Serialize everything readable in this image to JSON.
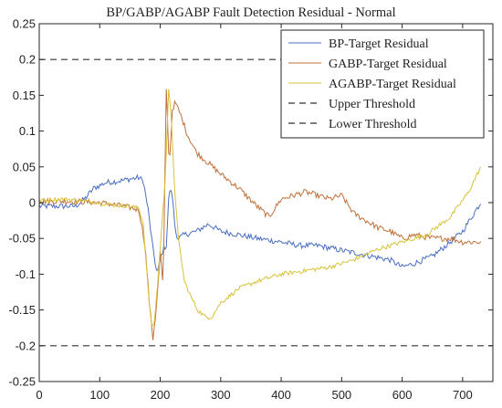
{
  "chart_data": {
    "type": "line",
    "title": "BP/GABP/AGABP Fault Detection Residual - Normal",
    "xlabel": "",
    "ylabel": "",
    "xlim": [
      0,
      750
    ],
    "ylim": [
      -0.25,
      0.25
    ],
    "grid": false,
    "legend_position": "top-right",
    "x_ticks": [
      0,
      100,
      200,
      300,
      400,
      500,
      600,
      700
    ],
    "x_tick_labels": [
      "0",
      "100",
      "200",
      "300",
      "400",
      "500",
      "600",
      "700"
    ],
    "y_ticks": [
      -0.25,
      -0.2,
      -0.15,
      -0.1,
      -0.05,
      0,
      0.05,
      0.1,
      0.15,
      0.2,
      0.25
    ],
    "y_tick_labels": [
      "-0.25",
      "-0.2",
      "-0.15",
      "-0.1",
      "-0.05",
      "0",
      "0.05",
      "0.1",
      "0.15",
      "0.2",
      "0.25"
    ],
    "series": [
      {
        "name": "BP-Target Residual",
        "color": "#4a6fc2",
        "style": "solid",
        "x": [
          0,
          40,
          60,
          75,
          90,
          110,
          130,
          150,
          165,
          172,
          180,
          188,
          195,
          200,
          205,
          210,
          215,
          220,
          225,
          230,
          240,
          260,
          280,
          300,
          330,
          360,
          400,
          430,
          460,
          490,
          520,
          550,
          580,
          600,
          620,
          650,
          680,
          700,
          730
        ],
        "y": [
          -0.005,
          -0.005,
          -0.005,
          0.005,
          0.02,
          0.028,
          0.03,
          0.033,
          0.035,
          0.03,
          -0.01,
          -0.065,
          -0.1,
          -0.08,
          -0.065,
          -0.06,
          0.02,
          0.01,
          -0.04,
          -0.05,
          -0.045,
          -0.04,
          -0.03,
          -0.04,
          -0.045,
          -0.05,
          -0.055,
          -0.06,
          -0.06,
          -0.065,
          -0.07,
          -0.075,
          -0.08,
          -0.09,
          -0.085,
          -0.075,
          -0.055,
          -0.04,
          0.0
        ]
      },
      {
        "name": "GABP-Target Residual",
        "color": "#c0703a",
        "style": "solid",
        "x": [
          0,
          50,
          100,
          140,
          165,
          175,
          182,
          188,
          192,
          196,
          200,
          205,
          210,
          215,
          220,
          225,
          235,
          245,
          260,
          280,
          300,
          330,
          360,
          380,
          400,
          420,
          440,
          460,
          480,
          500,
          520,
          540,
          560,
          580,
          600,
          620,
          650,
          680,
          700,
          730
        ],
        "y": [
          0.002,
          0.002,
          0.0,
          -0.005,
          -0.01,
          -0.06,
          -0.14,
          -0.19,
          -0.16,
          -0.12,
          -0.07,
          -0.12,
          0.16,
          0.05,
          0.13,
          0.14,
          0.12,
          0.095,
          0.07,
          0.055,
          0.04,
          0.02,
          -0.005,
          -0.02,
          0.005,
          0.01,
          0.015,
          0.01,
          0.005,
          0.01,
          -0.015,
          -0.025,
          -0.035,
          -0.04,
          -0.05,
          -0.045,
          -0.05,
          -0.05,
          -0.055,
          -0.055
        ]
      },
      {
        "name": "AGABP-Target Residual",
        "color": "#d8c23a",
        "style": "solid",
        "x": [
          0,
          40,
          80,
          120,
          150,
          165,
          172,
          178,
          185,
          190,
          196,
          202,
          208,
          214,
          218,
          224,
          230,
          240,
          250,
          262,
          275,
          285,
          300,
          330,
          360,
          400,
          440,
          480,
          520,
          560,
          600,
          640,
          680,
          710,
          730
        ],
        "y": [
          0.003,
          0.005,
          0.002,
          -0.003,
          -0.005,
          -0.008,
          -0.03,
          -0.1,
          -0.17,
          -0.17,
          -0.11,
          -0.04,
          0.03,
          0.16,
          0.12,
          0.02,
          -0.05,
          -0.11,
          -0.13,
          -0.15,
          -0.16,
          -0.16,
          -0.14,
          -0.12,
          -0.11,
          -0.1,
          -0.095,
          -0.09,
          -0.08,
          -0.065,
          -0.055,
          -0.045,
          -0.02,
          0.015,
          0.05
        ]
      },
      {
        "name": "Upper Threshold",
        "color": "#333333",
        "style": "dashed",
        "x": [
          0,
          750
        ],
        "y": [
          0.2,
          0.2
        ]
      },
      {
        "name": "Lower Threshold",
        "color": "#333333",
        "style": "dashed",
        "x": [
          0,
          750
        ],
        "y": [
          -0.2,
          -0.2
        ]
      }
    ]
  }
}
